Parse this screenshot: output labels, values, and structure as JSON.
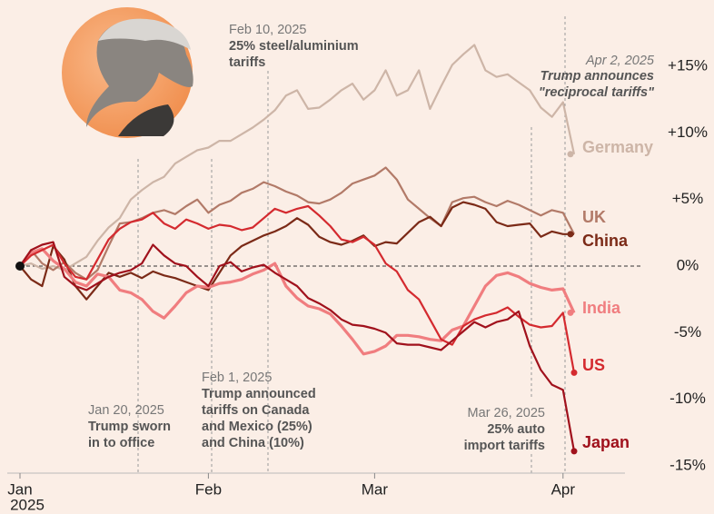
{
  "chart_data": {
    "type": "line",
    "categories": [
      "Jan",
      null,
      null,
      null,
      null,
      null,
      null,
      null,
      null,
      null,
      null,
      null,
      null,
      null,
      null,
      null,
      null,
      "Feb",
      null,
      null,
      null,
      null,
      null,
      null,
      null,
      null,
      null,
      null,
      null,
      null,
      null,
      null,
      "Mar",
      null,
      null,
      null,
      null,
      null,
      null,
      null,
      null,
      null,
      null,
      null,
      null,
      null,
      null,
      null,
      null,
      "Apr",
      null
    ],
    "x_year_label": "2025",
    "ylim": [
      -16,
      18
    ],
    "yticks": [
      {
        "value": 15,
        "label": "+15%"
      },
      {
        "value": 10,
        "label": "+10%"
      },
      {
        "value": 5,
        "label": "+5%"
      },
      {
        "value": 0,
        "label": "0%"
      },
      {
        "value": -5,
        "label": "-5%"
      },
      {
        "value": -10,
        "label": "-10%"
      },
      {
        "value": -15,
        "label": "-15%"
      }
    ],
    "series": [
      {
        "name": "Germany",
        "color": "#cdb5a7",
        "values": [
          0,
          0.2,
          -0.2,
          0,
          -0.3,
          0.2,
          0.7,
          1.9,
          2.9,
          3.6,
          5.0,
          5.7,
          6.3,
          6.7,
          7.7,
          8.2,
          8.7,
          8.9,
          9.4,
          9.4,
          9.9,
          10.4,
          11.0,
          11.7,
          12.8,
          13.2,
          11.8,
          11.9,
          12.5,
          13.2,
          13.7,
          12.5,
          13.2,
          14.7,
          12.8,
          13.2,
          14.7,
          11.8,
          13.5,
          15.1,
          15.9,
          16.6,
          14.7,
          14.2,
          14.4,
          13.8,
          13.2,
          11.9,
          11.2,
          12.3,
          8.4
        ]
      },
      {
        "name": "UK",
        "color": "#b27a68",
        "values": [
          0,
          1.2,
          0.2,
          -0.3,
          0.3,
          -0.5,
          -1.0,
          -0.3,
          1.5,
          3.2,
          3.3,
          3.6,
          4.0,
          4.2,
          3.9,
          4.5,
          5.0,
          4.0,
          4.6,
          4.9,
          5.5,
          5.8,
          6.3,
          6.0,
          5.6,
          5.3,
          4.8,
          4.7,
          5.0,
          5.5,
          6.2,
          6.5,
          6.8,
          7.4,
          6.5,
          5.0,
          4.3,
          3.6,
          3.0,
          4.8,
          5.1,
          5.2,
          4.8,
          4.5,
          4.9,
          4.6,
          4.2,
          3.8,
          4.2,
          4.0,
          2.4
        ]
      },
      {
        "name": "China",
        "color": "#7b2a17",
        "values": [
          0,
          -1.0,
          -1.5,
          1.5,
          0.5,
          -1.5,
          -2.5,
          -1.5,
          -0.5,
          -0.8,
          -0.5,
          -0.9,
          -0.4,
          -0.7,
          -0.9,
          -1.2,
          -1.5,
          -1.8,
          -0.5,
          0.8,
          1.5,
          1.9,
          2.3,
          2.6,
          3.0,
          3.6,
          3.1,
          2.2,
          1.8,
          1.6,
          1.9,
          2.3,
          1.5,
          1.8,
          1.7,
          2.5,
          3.3,
          3.7,
          3.0,
          4.4,
          4.8,
          4.6,
          4.3,
          3.3,
          3.0,
          3.1,
          3.2,
          2.2,
          2.6,
          2.4,
          2.4
        ]
      },
      {
        "name": "India",
        "color": "#f07d7f",
        "values": [
          0,
          1.0,
          1.3,
          0.4,
          -0.2,
          -1.2,
          -1.5,
          -0.6,
          -0.8,
          -1.8,
          -2.0,
          -2.5,
          -3.4,
          -3.9,
          -3.0,
          -2.0,
          -1.5,
          -1.6,
          -1.3,
          -1.2,
          -1.0,
          -0.6,
          -0.3,
          0.2,
          -1.5,
          -2.4,
          -3.0,
          -3.2,
          -3.6,
          -4.5,
          -5.5,
          -6.6,
          -6.4,
          -6.0,
          -5.2,
          -5.2,
          -5.3,
          -5.5,
          -5.6,
          -4.8,
          -4.5,
          -3.0,
          -1.5,
          -0.7,
          -0.5,
          -0.8,
          -1.3,
          -1.6,
          -1.8,
          -1.7,
          -3.5
        ]
      },
      {
        "name": "US",
        "color": "#d42a2f",
        "values": [
          0,
          0.8,
          1.2,
          1.6,
          0.2,
          -0.8,
          -1.0,
          0.5,
          2.0,
          2.8,
          3.3,
          3.5,
          4.0,
          3.2,
          2.8,
          3.5,
          3.2,
          2.8,
          3.1,
          3.0,
          2.7,
          2.9,
          3.6,
          4.3,
          4.0,
          4.3,
          4.5,
          3.8,
          3.0,
          2.0,
          1.8,
          2.2,
          1.6,
          0.2,
          -0.4,
          -1.8,
          -2.5,
          -4.0,
          -5.5,
          -5.9,
          -4.5,
          -4.0,
          -3.7,
          -3.5,
          -3.1,
          -3.8,
          -4.4,
          -4.6,
          -4.5,
          -3.5,
          -8.0
        ]
      },
      {
        "name": "Japan",
        "color": "#a0111c",
        "values": [
          0,
          1.2,
          1.6,
          1.8,
          -0.8,
          -1.5,
          -1.8,
          -1.3,
          -0.8,
          -0.5,
          -0.3,
          0.2,
          1.6,
          0.8,
          0.2,
          0.0,
          -0.8,
          -1.5,
          0.0,
          0.3,
          -0.4,
          -0.1,
          0.1,
          -0.5,
          -1.0,
          -1.5,
          -2.4,
          -2.8,
          -3.3,
          -4.0,
          -4.4,
          -4.5,
          -4.7,
          -5.0,
          -5.8,
          -5.9,
          -5.9,
          -6.1,
          -6.3,
          -5.6,
          -4.9,
          -4.2,
          -4.6,
          -4.2,
          -4.0,
          -3.4,
          -6.0,
          -7.8,
          -8.9,
          -9.3,
          -13.9
        ]
      }
    ],
    "annotations": [
      {
        "date": "Jan 20, 2025",
        "lines": [
          "Trump sworn",
          "in to office"
        ]
      },
      {
        "date": "Feb 1, 2025",
        "lines": [
          "Trump announced",
          "tariffs on Canada",
          "and Mexico (25%)",
          "and China (10%)"
        ]
      },
      {
        "date": "Feb 10, 2025",
        "lines": [
          "25% steel/aluminium",
          "tariffs"
        ]
      },
      {
        "date": "Mar 26, 2025",
        "lines": [
          "25% auto",
          "import tariffs"
        ]
      },
      {
        "date": "Apr 2, 2025",
        "lines": [
          "Trump announces",
          "\"reciprocal tariffs\""
        ]
      }
    ]
  }
}
